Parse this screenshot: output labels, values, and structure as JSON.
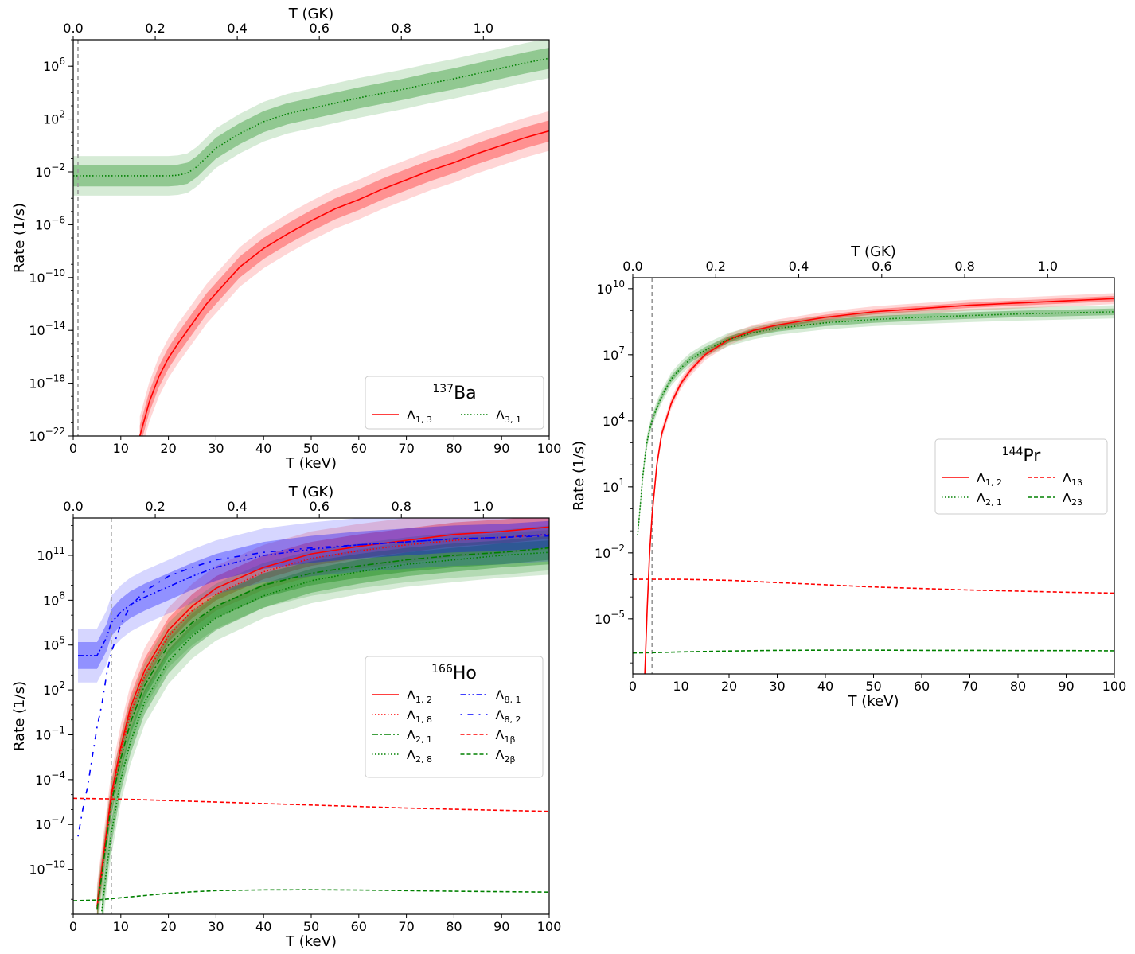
{
  "chart_data": [
    {
      "type": "line",
      "id": "ba137",
      "title_prefix": "137",
      "title_main": "Ba",
      "xlabel": "T (keV)",
      "ylabel": "Rate (1/s)",
      "top_xlabel": "T (GK)",
      "xlim": [
        0,
        100
      ],
      "ylim_log10": [
        -22,
        8
      ],
      "x_ticks": [
        0,
        10,
        20,
        30,
        40,
        50,
        60,
        70,
        80,
        90,
        100
      ],
      "top_ticks": [
        "0.0",
        "0.2",
        "0.4",
        "0.6",
        "0.8",
        "1.0"
      ],
      "y_ticks_exp": [
        -22,
        -18,
        -14,
        -10,
        -6,
        -2,
        2,
        6
      ],
      "vline_x": 1,
      "legend_location": "lower-right",
      "legend_columns": 2,
      "series": [
        {
          "name": "Λ1,3",
          "label_main": "Λ",
          "label_sub": "1, 3",
          "color": "#ff0000",
          "style": "solid",
          "x": [
            14,
            16,
            18,
            20,
            22,
            25,
            28,
            30,
            35,
            40,
            45,
            50,
            55,
            60,
            65,
            70,
            75,
            80,
            85,
            90,
            95,
            100
          ],
          "log10_y": [
            -22,
            -19.4,
            -17.5,
            -16.1,
            -15,
            -13.5,
            -12,
            -11.2,
            -9.2,
            -7.8,
            -6.7,
            -5.7,
            -4.8,
            -4.1,
            -3.3,
            -2.6,
            -1.9,
            -1.3,
            -0.6,
            0,
            0.6,
            1.1
          ],
          "band_inner": 0.8,
          "band_outer": 1.5
        },
        {
          "name": "Λ3,1",
          "label_main": "Λ",
          "label_sub": "3, 1",
          "color": "#008000",
          "style": "dotted",
          "x": [
            0,
            5,
            10,
            15,
            20,
            22,
            24,
            26,
            28,
            30,
            35,
            40,
            45,
            50,
            55,
            60,
            65,
            70,
            75,
            80,
            85,
            90,
            95,
            100
          ],
          "log10_y": [
            -2.3,
            -2.3,
            -2.3,
            -2.3,
            -2.3,
            -2.25,
            -2.1,
            -1.6,
            -0.9,
            -0.2,
            0.9,
            1.8,
            2.4,
            2.8,
            3.2,
            3.6,
            3.95,
            4.3,
            4.7,
            5.05,
            5.45,
            5.85,
            6.25,
            6.6
          ],
          "band_inner": 0.8,
          "band_outer": 1.5
        }
      ]
    },
    {
      "type": "line",
      "id": "ho166",
      "title_prefix": "166",
      "title_main": "Ho",
      "xlabel": "T (keV)",
      "ylabel": "Rate (1/s)",
      "top_xlabel": "T (GK)",
      "xlim": [
        0,
        100
      ],
      "ylim_log10": [
        -13,
        13.5
      ],
      "x_ticks": [
        0,
        10,
        20,
        30,
        40,
        50,
        60,
        70,
        80,
        90,
        100
      ],
      "top_ticks": [
        "0.0",
        "0.2",
        "0.4",
        "0.6",
        "0.8",
        "1.0"
      ],
      "y_ticks_exp": [
        -10,
        -7,
        -4,
        -1,
        2,
        5,
        8,
        11
      ],
      "vline_x": 8,
      "legend_location": "center-right",
      "legend_columns": 2,
      "series": [
        {
          "name": "Λ1,2",
          "label_main": "Λ",
          "label_sub": "1, 2",
          "color": "#ff0000",
          "style": "solid",
          "x": [
            5,
            6,
            7,
            8,
            10,
            12,
            15,
            20,
            25,
            30,
            40,
            50,
            60,
            70,
            80,
            90,
            100
          ],
          "log10_y": [
            -12.5,
            -10,
            -7.5,
            -5,
            -1.8,
            0.8,
            3.3,
            6,
            7.6,
            8.8,
            10.2,
            11.1,
            11.6,
            12,
            12.4,
            12.6,
            12.9
          ],
          "band_inner": 0.8,
          "band_outer": 1.5
        },
        {
          "name": "Λ1,8",
          "label_main": "Λ",
          "label_sub": "1, 8",
          "color": "#ff0000",
          "style": "dotted",
          "x": [
            5,
            6,
            7,
            8,
            10,
            12,
            15,
            20,
            25,
            30,
            40,
            50,
            60,
            70,
            80,
            90,
            100
          ],
          "log10_y": [
            -12.6,
            -10.2,
            -7.7,
            -5.3,
            -2.1,
            0.4,
            2.9,
            5.6,
            7.3,
            8.4,
            9.9,
            10.8,
            11.3,
            11.7,
            12,
            12.2,
            12.4
          ],
          "band_inner": 0,
          "band_outer": 0
        },
        {
          "name": "Λ2,1",
          "label_main": "Λ",
          "label_sub": "2, 1",
          "color": "#008000",
          "style": "dashdot",
          "x": [
            5,
            6,
            7,
            8,
            10,
            12,
            15,
            20,
            25,
            30,
            40,
            50,
            60,
            70,
            80,
            90,
            100
          ],
          "log10_y": [
            -12.7,
            -10.4,
            -8,
            -5.6,
            -2.6,
            -0.2,
            2.3,
            5,
            6.5,
            7.6,
            9,
            9.8,
            10.3,
            10.7,
            11,
            11.2,
            11.5
          ],
          "band_inner": 0.8,
          "band_outer": 1.5
        },
        {
          "name": "Λ2,8",
          "label_main": "Λ",
          "label_sub": "2, 8",
          "color": "#008000",
          "style": "dotted",
          "x": [
            6,
            7,
            8,
            10,
            12,
            15,
            20,
            25,
            30,
            40,
            50,
            60,
            70,
            80,
            90,
            100
          ],
          "log10_y": [
            -12.8,
            -10,
            -7.6,
            -4,
            -1.5,
            1.2,
            3.9,
            5.6,
            6.8,
            8.3,
            9.3,
            9.9,
            10.4,
            10.7,
            11,
            11.2
          ],
          "band_inner": 0.8,
          "band_outer": 1.5
        },
        {
          "name": "Λ8,1",
          "label_main": "Λ",
          "label_sub": "8, 1",
          "color": "#0000ff",
          "style": "dashdotdot",
          "x": [
            1,
            3,
            5,
            7,
            8,
            10,
            12,
            15,
            20,
            25,
            30,
            40,
            50,
            60,
            70,
            80,
            90,
            100
          ],
          "log10_y": [
            4.3,
            4.3,
            4.3,
            5.5,
            6.5,
            7.2,
            7.7,
            8.2,
            8.9,
            9.6,
            10.2,
            11,
            11.4,
            11.7,
            11.9,
            12.1,
            12.2,
            12.4
          ],
          "band_inner": 0.9,
          "band_outer": 1.8
        },
        {
          "name": "Λ8,2",
          "label_main": "Λ",
          "label_sub": "8, 2",
          "color": "#0000ff",
          "style": "sparse",
          "x": [
            1,
            2,
            3,
            4,
            5,
            6,
            7,
            8,
            10,
            12,
            15,
            20,
            25,
            30,
            40,
            50,
            60,
            70,
            80,
            90,
            100
          ],
          "log10_y": [
            -7.8,
            -6,
            -4.5,
            -2.5,
            -0.5,
            1,
            3,
            4.5,
            6.4,
            7.6,
            8.6,
            9.6,
            10.2,
            10.7,
            11.2,
            11.5,
            11.7,
            11.9,
            12.1,
            12.2,
            12.3
          ],
          "band_inner": 0,
          "band_outer": 0
        },
        {
          "name": "Λ1β",
          "label_main": "Λ",
          "label_sub": "1β",
          "color": "#ff0000",
          "style": "dashed",
          "x": [
            0,
            10,
            20,
            30,
            40,
            50,
            60,
            70,
            80,
            90,
            100
          ],
          "log10_y": [
            -5.25,
            -5.3,
            -5.4,
            -5.5,
            -5.6,
            -5.7,
            -5.8,
            -5.9,
            -5.98,
            -6.05,
            -6.12
          ],
          "band_inner": 0,
          "band_outer": 0
        },
        {
          "name": "Λ2β",
          "label_main": "Λ",
          "label_sub": "2β",
          "color": "#008000",
          "style": "dashed",
          "x": [
            0,
            5,
            10,
            15,
            20,
            25,
            30,
            40,
            50,
            60,
            70,
            80,
            90,
            100
          ],
          "log10_y": [
            -12.1,
            -12.05,
            -11.9,
            -11.75,
            -11.6,
            -11.5,
            -11.42,
            -11.37,
            -11.36,
            -11.38,
            -11.42,
            -11.46,
            -11.49,
            -11.52
          ],
          "band_inner": 0,
          "band_outer": 0
        }
      ]
    },
    {
      "type": "line",
      "id": "pr144",
      "title_prefix": "144",
      "title_main": "Pr",
      "xlabel": "T (keV)",
      "ylabel": "Rate (1/s)",
      "top_xlabel": "T (GK)",
      "xlim": [
        0,
        100
      ],
      "ylim_log10": [
        -7.5,
        10.5
      ],
      "x_ticks": [
        0,
        10,
        20,
        30,
        40,
        50,
        60,
        70,
        80,
        90,
        100
      ],
      "top_ticks": [
        "0.0",
        "0.2",
        "0.4",
        "0.6",
        "0.8",
        "1.0"
      ],
      "y_ticks_exp": [
        -5,
        -2,
        1,
        4,
        7,
        10
      ],
      "vline_x": 4,
      "legend_location": "center-right",
      "legend_columns": 2,
      "series": [
        {
          "name": "Λ1,2",
          "label_main": "Λ",
          "label_sub": "1, 2",
          "color": "#ff0000",
          "style": "solid",
          "x": [
            2.5,
            3,
            3.5,
            4,
            5,
            6,
            8,
            10,
            12,
            15,
            20,
            25,
            30,
            40,
            50,
            60,
            70,
            80,
            90,
            100
          ],
          "log10_y": [
            -7.5,
            -4.5,
            -2,
            -0.3,
            2,
            3.4,
            4.8,
            5.7,
            6.3,
            7,
            7.7,
            8.1,
            8.35,
            8.7,
            8.95,
            9.1,
            9.25,
            9.35,
            9.45,
            9.55
          ],
          "band_inner": 0.12,
          "band_outer": 0.25
        },
        {
          "name": "Λ2,1",
          "label_main": "Λ",
          "label_sub": "2, 1",
          "color": "#008000",
          "style": "dotted",
          "x": [
            1,
            1.5,
            2,
            2.5,
            3,
            3.5,
            4,
            5,
            6,
            8,
            10,
            12,
            15,
            20,
            25,
            30,
            40,
            50,
            60,
            70,
            80,
            90,
            100
          ],
          "log10_y": [
            -1.2,
            0,
            1.3,
            2.3,
            3.1,
            3.6,
            4,
            4.6,
            5.1,
            5.9,
            6.4,
            6.8,
            7.2,
            7.7,
            8,
            8.2,
            8.45,
            8.6,
            8.7,
            8.78,
            8.85,
            8.9,
            8.95
          ],
          "band_inner": 0.15,
          "band_outer": 0.3
        },
        {
          "name": "Λ1β",
          "label_main": "Λ",
          "label_sub": "1β",
          "color": "#ff0000",
          "style": "dashed",
          "x": [
            0,
            10,
            20,
            30,
            40,
            50,
            60,
            70,
            80,
            90,
            100
          ],
          "log10_y": [
            -3.2,
            -3.2,
            -3.25,
            -3.35,
            -3.45,
            -3.55,
            -3.62,
            -3.69,
            -3.74,
            -3.79,
            -3.83
          ],
          "band_inner": 0,
          "band_outer": 0
        },
        {
          "name": "Λ2β",
          "label_main": "Λ",
          "label_sub": "2β",
          "color": "#008000",
          "style": "dashed",
          "x": [
            0,
            5,
            10,
            20,
            30,
            40,
            50,
            60,
            70,
            80,
            90,
            100
          ],
          "log10_y": [
            -6.55,
            -6.53,
            -6.5,
            -6.46,
            -6.43,
            -6.42,
            -6.42,
            -6.43,
            -6.43,
            -6.44,
            -6.44,
            -6.45
          ],
          "band_inner": 0,
          "band_outer": 0
        }
      ]
    }
  ]
}
